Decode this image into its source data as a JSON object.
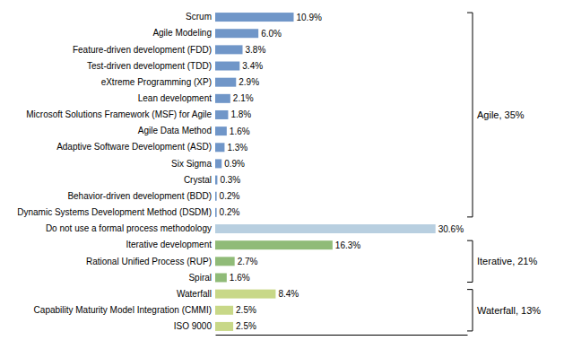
{
  "chart_data": {
    "type": "bar",
    "orientation": "horizontal",
    "categories": [
      "Scrum",
      "Agile Modeling",
      "Feature-driven development (FDD)",
      "Test-driven development (TDD)",
      "eXtreme Programming (XP)",
      "Lean development",
      "Microsoft Solutions Framework (MSF) for Agile",
      "Agile Data Method",
      "Adaptive Software Development (ASD)",
      "Six Sigma",
      "Crystal",
      "Behavior-driven development (BDD)",
      "Dynamic Systems Development Method (DSDM)",
      "Do not use a formal process methodology",
      "Iterative development",
      "Rational Unified Process (RUP)",
      "Spiral",
      "Waterfall",
      "Capability Maturity Model Integration (CMMI)",
      "ISO 9000"
    ],
    "values": [
      10.9,
      6.0,
      3.8,
      3.4,
      2.9,
      2.1,
      1.8,
      1.6,
      1.3,
      0.9,
      0.3,
      0.2,
      0.2,
      30.6,
      16.3,
      2.7,
      1.6,
      8.4,
      2.5,
      2.5
    ],
    "value_labels": [
      "10.9%",
      "6.0%",
      "3.8%",
      "3.4%",
      "2.9%",
      "2.1%",
      "1.8%",
      "1.6%",
      "1.3%",
      "0.9%",
      "0.3%",
      "0.2%",
      "0.2%",
      "30.6%",
      "16.3%",
      "2.7%",
      "1.6%",
      "8.4%",
      "2.5%",
      "2.5%"
    ],
    "data_labels": true,
    "colors": [
      "#7096c8",
      "#7096c8",
      "#7096c8",
      "#7096c8",
      "#7096c8",
      "#7096c8",
      "#7096c8",
      "#7096c8",
      "#7096c8",
      "#7096c8",
      "#7096c8",
      "#7096c8",
      "#7096c8",
      "#b8cfe0",
      "#90bb78",
      "#90bb78",
      "#90bb78",
      "#c8d888",
      "#c8d888",
      "#c8d888"
    ],
    "xlim": [
      0,
      35
    ],
    "tick_labels": "y",
    "grid": false,
    "annotations": [
      {
        "text": "Agile, 35%",
        "start": "Scrum",
        "end": "Dynamic Systems Development Method (DSDM)"
      },
      {
        "text": "Iterative, 21%",
        "start": "Iterative development",
        "end": "Spiral"
      },
      {
        "text": "Waterfall, 13%",
        "start": "Waterfall",
        "end": "ISO 9000"
      }
    ]
  }
}
